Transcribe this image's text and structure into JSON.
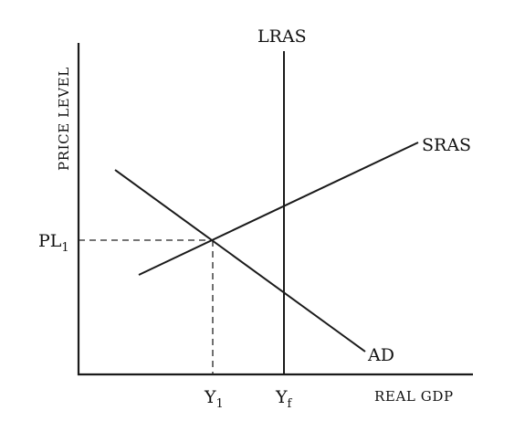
{
  "axes": {
    "y_label": "PRICE LEVEL",
    "x_label": "REAL GDP"
  },
  "curves": {
    "lras": "LRAS",
    "sras": "SRAS",
    "ad": "AD"
  },
  "markers": {
    "price_level": {
      "base": "PL",
      "sub": "1"
    },
    "output_1": {
      "base": "Y",
      "sub": "1"
    },
    "output_f": {
      "base": "Y",
      "sub": "f"
    }
  }
}
